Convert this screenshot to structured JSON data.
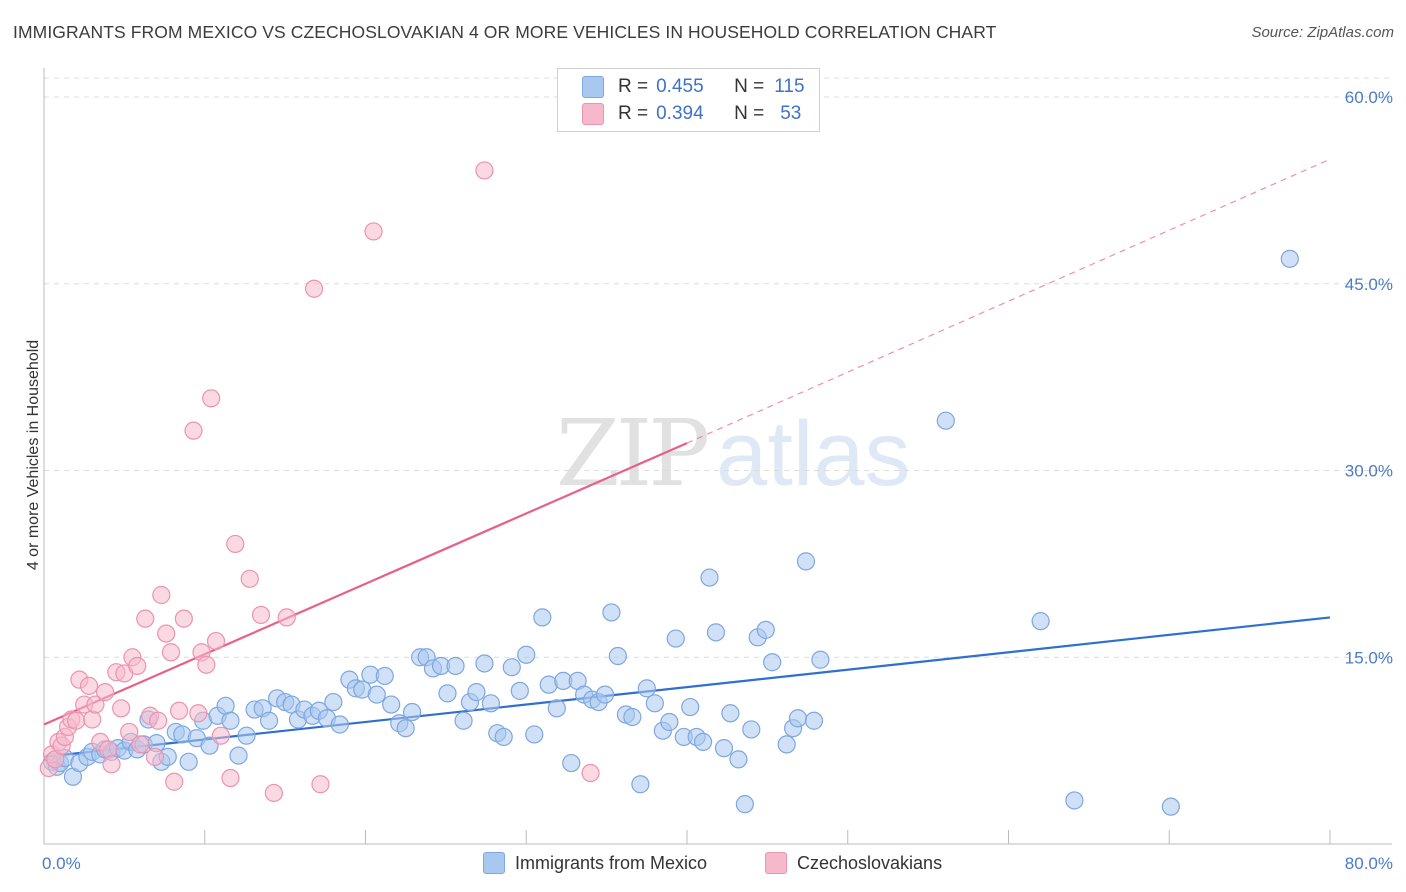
{
  "header": {
    "title": "IMMIGRANTS FROM MEXICO VS CZECHOSLOVAKIAN 4 OR MORE VEHICLES IN HOUSEHOLD CORRELATION CHART",
    "source": "Source: ZipAtlas.com"
  },
  "watermark": {
    "zip": "ZIP",
    "atlas": "atlas"
  },
  "legend": {
    "rows": [
      {
        "r_label": "R =",
        "r_value": "0.455",
        "n_label": "N =",
        "n_value": "115",
        "color": "#a9c8f0"
      },
      {
        "r_label": "R =",
        "r_value": "0.394",
        "n_label": "N =",
        "n_value": "53",
        "color": "#f6b9cc"
      }
    ]
  },
  "bottom_legend": {
    "items": [
      {
        "label": "Immigrants from Mexico",
        "color": "#a9c8f0"
      },
      {
        "label": "Czechoslovakians",
        "color": "#f6b9cc"
      }
    ]
  },
  "chart_data": {
    "type": "scatter",
    "title": "IMMIGRANTS FROM MEXICO VS CZECHOSLOVAKIAN 4 OR MORE VEHICLES IN HOUSEHOLD CORRELATION CHART",
    "xlabel": "",
    "ylabel": "4 or more Vehicles in Household",
    "xlim": [
      0,
      80
    ],
    "ylim": [
      0,
      62
    ],
    "x_tick_labels": [
      "0.0%",
      "80.0%"
    ],
    "y_ticks": [
      15,
      30,
      45,
      60
    ],
    "y_tick_labels": [
      "15.0%",
      "30.0%",
      "45.0%",
      "60.0%"
    ],
    "grid": true,
    "legend_position": "top-center",
    "series": [
      {
        "name": "Immigrants from Mexico",
        "color": "#a9c8f0",
        "stroke": "#7da7de",
        "trend": {
          "x": [
            0,
            80
          ],
          "y": [
            7.0,
            18.2
          ],
          "color": "#2f6fcf",
          "dashed_extension": false
        },
        "points": [
          [
            0.5,
            6.6
          ],
          [
            0.8,
            6.2
          ],
          [
            1.0,
            6.5
          ],
          [
            1.3,
            6.9
          ],
          [
            1.8,
            5.4
          ],
          [
            2.2,
            6.5
          ],
          [
            2.7,
            7.0
          ],
          [
            3.0,
            7.4
          ],
          [
            3.5,
            7.2
          ],
          [
            3.8,
            7.6
          ],
          [
            4.2,
            7.4
          ],
          [
            4.6,
            7.7
          ],
          [
            5.0,
            7.5
          ],
          [
            5.4,
            8.2
          ],
          [
            5.8,
            7.6
          ],
          [
            6.2,
            8.0
          ],
          [
            6.5,
            10.0
          ],
          [
            7.0,
            8.1
          ],
          [
            7.3,
            6.6
          ],
          [
            7.7,
            7.0
          ],
          [
            8.2,
            9.0
          ],
          [
            8.6,
            8.8
          ],
          [
            9.0,
            6.6
          ],
          [
            9.5,
            8.5
          ],
          [
            9.9,
            9.9
          ],
          [
            10.3,
            7.9
          ],
          [
            10.8,
            10.3
          ],
          [
            11.3,
            11.1
          ],
          [
            11.6,
            9.9
          ],
          [
            12.1,
            7.1
          ],
          [
            12.6,
            8.7
          ],
          [
            13.1,
            10.8
          ],
          [
            13.6,
            10.9
          ],
          [
            14.0,
            9.9
          ],
          [
            14.5,
            11.7
          ],
          [
            15.0,
            11.4
          ],
          [
            15.4,
            11.2
          ],
          [
            15.8,
            10.0
          ],
          [
            16.2,
            10.8
          ],
          [
            16.7,
            10.3
          ],
          [
            17.1,
            10.7
          ],
          [
            17.6,
            10.1
          ],
          [
            18.0,
            11.4
          ],
          [
            18.4,
            9.6
          ],
          [
            19.0,
            13.2
          ],
          [
            19.4,
            12.5
          ],
          [
            19.8,
            12.4
          ],
          [
            20.3,
            13.6
          ],
          [
            20.7,
            12.0
          ],
          [
            21.2,
            13.5
          ],
          [
            21.6,
            11.2
          ],
          [
            22.1,
            9.7
          ],
          [
            22.5,
            9.3
          ],
          [
            22.9,
            10.6
          ],
          [
            23.4,
            15.0
          ],
          [
            23.8,
            15.0
          ],
          [
            24.2,
            14.1
          ],
          [
            24.7,
            14.3
          ],
          [
            25.1,
            12.1
          ],
          [
            25.6,
            14.3
          ],
          [
            26.1,
            9.9
          ],
          [
            26.5,
            11.4
          ],
          [
            26.9,
            12.2
          ],
          [
            27.4,
            14.5
          ],
          [
            27.8,
            11.3
          ],
          [
            28.2,
            8.9
          ],
          [
            28.6,
            8.6
          ],
          [
            29.1,
            14.2
          ],
          [
            29.6,
            12.3
          ],
          [
            30.0,
            15.2
          ],
          [
            30.5,
            8.8
          ],
          [
            31.0,
            18.2
          ],
          [
            31.4,
            12.8
          ],
          [
            31.9,
            10.9
          ],
          [
            32.3,
            13.1
          ],
          [
            32.8,
            6.5
          ],
          [
            33.2,
            13.1
          ],
          [
            33.6,
            12.0
          ],
          [
            34.1,
            11.6
          ],
          [
            34.5,
            11.4
          ],
          [
            34.9,
            12.0
          ],
          [
            35.3,
            18.6
          ],
          [
            35.7,
            15.1
          ],
          [
            36.2,
            10.4
          ],
          [
            36.6,
            10.2
          ],
          [
            37.1,
            4.8
          ],
          [
            37.5,
            12.5
          ],
          [
            38.0,
            11.3
          ],
          [
            38.5,
            9.1
          ],
          [
            38.9,
            9.8
          ],
          [
            39.3,
            16.5
          ],
          [
            39.8,
            8.6
          ],
          [
            40.2,
            11.0
          ],
          [
            40.6,
            8.6
          ],
          [
            41.0,
            8.2
          ],
          [
            41.4,
            21.4
          ],
          [
            41.8,
            17.0
          ],
          [
            42.3,
            7.7
          ],
          [
            42.7,
            10.5
          ],
          [
            43.2,
            6.8
          ],
          [
            43.6,
            3.2
          ],
          [
            44.0,
            9.2
          ],
          [
            44.4,
            16.6
          ],
          [
            44.9,
            17.2
          ],
          [
            45.3,
            14.6
          ],
          [
            46.2,
            8.0
          ],
          [
            46.6,
            9.3
          ],
          [
            46.9,
            10.1
          ],
          [
            47.4,
            22.7
          ],
          [
            47.9,
            9.9
          ],
          [
            48.3,
            14.8
          ],
          [
            56.1,
            34.0
          ],
          [
            62.0,
            17.9
          ],
          [
            64.1,
            3.5
          ],
          [
            70.1,
            3.0
          ],
          [
            77.5,
            47.0
          ]
        ]
      },
      {
        "name": "Czechoslovakians",
        "color": "#f6b9cc",
        "stroke": "#ec93ae",
        "trend": {
          "x": [
            0,
            40
          ],
          "y": [
            9.6,
            32.2
          ],
          "dashed_to": {
            "x": 80,
            "y": 55.0
          },
          "color": "#e8608a"
        },
        "points": [
          [
            0.3,
            6.1
          ],
          [
            0.5,
            7.2
          ],
          [
            0.7,
            6.8
          ],
          [
            0.9,
            8.2
          ],
          [
            1.1,
            7.9
          ],
          [
            1.3,
            8.6
          ],
          [
            1.5,
            9.4
          ],
          [
            1.7,
            10.0
          ],
          [
            2.0,
            9.9
          ],
          [
            2.2,
            13.2
          ],
          [
            2.5,
            11.2
          ],
          [
            2.8,
            12.7
          ],
          [
            3.0,
            10.0
          ],
          [
            3.2,
            11.2
          ],
          [
            3.5,
            8.2
          ],
          [
            3.8,
            12.2
          ],
          [
            4.0,
            7.6
          ],
          [
            4.2,
            6.4
          ],
          [
            4.5,
            13.8
          ],
          [
            4.8,
            10.9
          ],
          [
            5.0,
            13.7
          ],
          [
            5.3,
            9.0
          ],
          [
            5.5,
            15.0
          ],
          [
            5.8,
            14.3
          ],
          [
            6.0,
            8.0
          ],
          [
            6.3,
            18.1
          ],
          [
            6.6,
            10.3
          ],
          [
            6.9,
            7.0
          ],
          [
            7.1,
            9.9
          ],
          [
            7.3,
            20.0
          ],
          [
            7.6,
            16.9
          ],
          [
            7.9,
            15.4
          ],
          [
            8.1,
            5.0
          ],
          [
            8.4,
            10.7
          ],
          [
            8.7,
            18.1
          ],
          [
            9.3,
            33.2
          ],
          [
            9.6,
            10.5
          ],
          [
            9.8,
            15.4
          ],
          [
            10.1,
            14.4
          ],
          [
            10.4,
            35.8
          ],
          [
            10.7,
            16.3
          ],
          [
            11.0,
            8.7
          ],
          [
            11.6,
            5.3
          ],
          [
            11.9,
            24.1
          ],
          [
            12.8,
            21.3
          ],
          [
            13.5,
            18.4
          ],
          [
            14.3,
            4.1
          ],
          [
            15.1,
            18.2
          ],
          [
            16.8,
            44.6
          ],
          [
            17.2,
            4.8
          ],
          [
            20.5,
            49.2
          ],
          [
            27.4,
            54.1
          ],
          [
            34.0,
            5.7
          ]
        ]
      }
    ]
  }
}
